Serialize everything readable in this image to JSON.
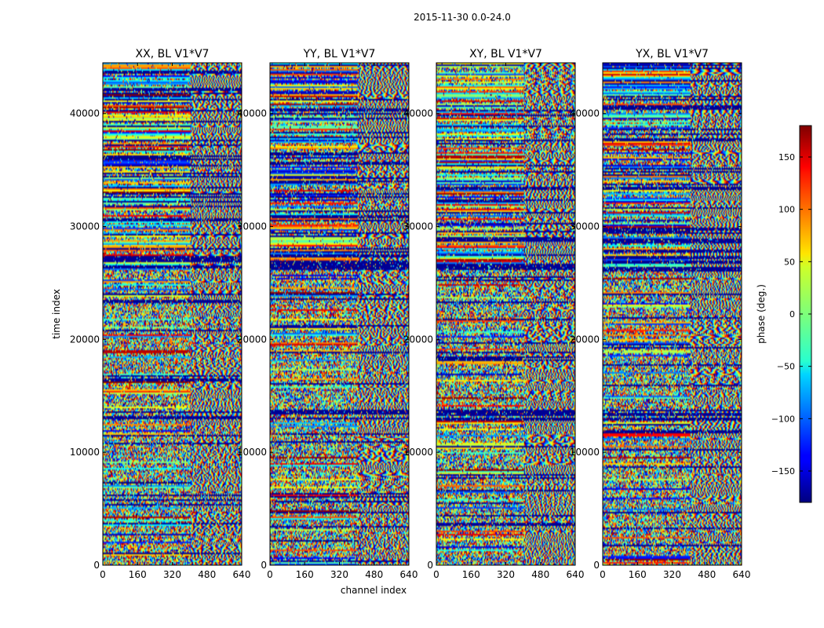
{
  "chart_data": {
    "type": "heatmap",
    "suptitle": "2015-11-30 0.0-24.0",
    "xlabel": "channel index",
    "ylabel": "time index",
    "xlim": [
      0,
      640
    ],
    "ylim": [
      0,
      44500
    ],
    "xticks": [
      0,
      160,
      320,
      480,
      640
    ],
    "yticks": [
      0,
      10000,
      20000,
      30000,
      40000
    ],
    "panels": [
      {
        "title": "XX, BL V1*V7",
        "seed": 11
      },
      {
        "title": "YY, BL V1*V7",
        "seed": 23
      },
      {
        "title": "XY, BL V1*V7",
        "seed": 37
      },
      {
        "title": "YX, BL V1*V7",
        "seed": 53
      }
    ],
    "colorbar": {
      "label": "phase (deg.)",
      "range": [
        -180,
        180
      ],
      "ticks": [
        150,
        100,
        50,
        0,
        -50,
        -100,
        -150
      ],
      "colormap": "jet"
    }
  }
}
